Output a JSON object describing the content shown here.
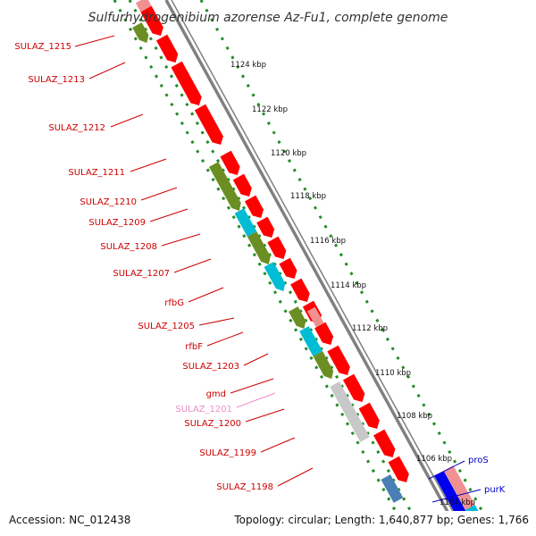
{
  "title": "Sulfurhydrogenibium azorense Az-Fu1, complete genome",
  "footer": {
    "accession": "Accession: NC_012438",
    "summary": "Topology: circular; Length: 1,640,877 bp; Genes: 1,766"
  },
  "colors": {
    "forward_gene": "#ff0000",
    "forward_gene_partial": "#f09090",
    "cds_green": "#6b8e23",
    "cds_cyan": "#00bcd4",
    "pseudo_gray": "#c8c8c8",
    "blue_gene": "#0000ee",
    "steel_gene": "#4a7fb5",
    "backbone": "#808080",
    "tick": "#228b22",
    "label_red": "#cc0000",
    "label_pink": "#f08cc8",
    "label_blue": "#0000cc"
  },
  "kbp_labels": [
    "1124 kbp",
    "1122 kbp",
    "1120 kbp",
    "1118 kbp",
    "1116 kbp",
    "1114 kbp",
    "1112 kbp",
    "1110 kbp",
    "1108 kbp",
    "1106 kbp",
    "1104 kbp"
  ],
  "left_labels": [
    {
      "text": "SULAZ_1215",
      "color": "label_red"
    },
    {
      "text": "SULAZ_1213",
      "color": "label_red"
    },
    {
      "text": "SULAZ_1212",
      "color": "label_red"
    },
    {
      "text": "SULAZ_1211",
      "color": "label_red"
    },
    {
      "text": "SULAZ_1210",
      "color": "label_red"
    },
    {
      "text": "SULAZ_1209",
      "color": "label_red"
    },
    {
      "text": "SULAZ_1208",
      "color": "label_red"
    },
    {
      "text": "SULAZ_1207",
      "color": "label_red"
    },
    {
      "text": "rfbG",
      "color": "label_red"
    },
    {
      "text": "SULAZ_1205",
      "color": "label_red"
    },
    {
      "text": "rfbF",
      "color": "label_red"
    },
    {
      "text": "SULAZ_1203",
      "color": "label_red"
    },
    {
      "text": "gmd",
      "color": "label_red"
    },
    {
      "text": "SULAZ_1201",
      "color": "label_pink"
    },
    {
      "text": "SULAZ_1200",
      "color": "label_red"
    },
    {
      "text": "SULAZ_1199",
      "color": "label_red"
    },
    {
      "text": "SULAZ_1198",
      "color": "label_red"
    }
  ],
  "right_labels": [
    {
      "text": "proS",
      "color": "label_blue"
    },
    {
      "text": "purK",
      "color": "label_blue"
    }
  ]
}
